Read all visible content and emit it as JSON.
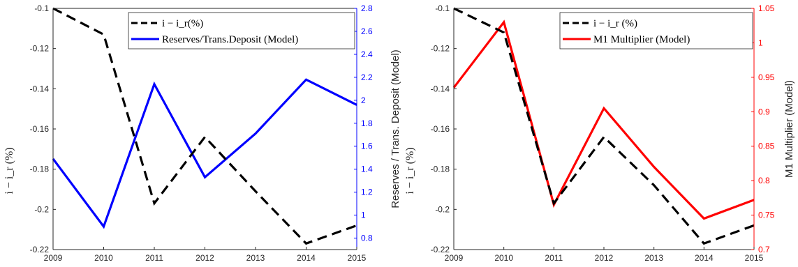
{
  "chart_data": [
    {
      "type": "line",
      "x": [
        2009,
        2010,
        2011,
        2012,
        2013,
        2014,
        2015
      ],
      "x_ticks": [
        "2009",
        "2010",
        "2011",
        "2012",
        "2013",
        "2014",
        "2015"
      ],
      "ylabel_left": "i − i_r (%)",
      "ylabel_right": "Reserves / Trans. Deposit (Model)",
      "ylim_left": [
        -0.22,
        -0.1
      ],
      "y_ticks_left": [
        "-0.1",
        "-0.12",
        "-0.14",
        "-0.16",
        "-0.18",
        "-0.2",
        "-0.22"
      ],
      "ylim_right": [
        0.7,
        2.8
      ],
      "y_ticks_right": [
        "2.8",
        "2.6",
        "2.4",
        "2.2",
        "2",
        "1.8",
        "1.6",
        "1.4",
        "1.2",
        "1",
        "0.8"
      ],
      "right_axis_color": "#0000ff",
      "legend_position": "top-right",
      "series": [
        {
          "name": "i − i_r(%)",
          "axis": "left",
          "color": "#000000",
          "dash": true,
          "values": [
            -0.1,
            -0.113,
            -0.197,
            -0.164,
            -0.191,
            -0.217,
            -0.208
          ]
        },
        {
          "name": "Reserves/Trans.Deposit (Model)",
          "axis": "right",
          "color": "#0000ff",
          "dash": false,
          "values": [
            1.49,
            0.9,
            2.14,
            1.33,
            1.71,
            2.18,
            1.96
          ]
        }
      ]
    },
    {
      "type": "line",
      "x": [
        2009,
        2010,
        2011,
        2012,
        2013,
        2014,
        2015
      ],
      "x_ticks": [
        "2009",
        "2010",
        "2011",
        "2012",
        "2013",
        "2014",
        "2015"
      ],
      "ylabel_left": "i − i_r (%)",
      "ylabel_right": "M1 Multiplier (Model)",
      "ylim_left": [
        -0.22,
        -0.1
      ],
      "y_ticks_left": [
        "-0.1",
        "-0.12",
        "-0.14",
        "-0.16",
        "-0.18",
        "-0.2",
        "-0.22"
      ],
      "ylim_right": [
        0.7,
        1.05
      ],
      "y_ticks_right": [
        "1.05",
        "1",
        "0.95",
        "0.9",
        "0.85",
        "0.8",
        "0.75",
        "0.7"
      ],
      "right_axis_color": "#ff0000",
      "legend_position": "top-right",
      "series": [
        {
          "name": "i − i_r (%)",
          "axis": "left",
          "color": "#000000",
          "dash": true,
          "values": [
            -0.1,
            -0.112,
            -0.197,
            -0.164,
            -0.188,
            -0.217,
            -0.208
          ]
        },
        {
          "name": "M1 Multiplier (Model)",
          "axis": "right",
          "color": "#ff0000",
          "dash": false,
          "values": [
            0.935,
            1.03,
            0.765,
            0.905,
            0.82,
            0.745,
            0.772
          ]
        }
      ]
    }
  ]
}
